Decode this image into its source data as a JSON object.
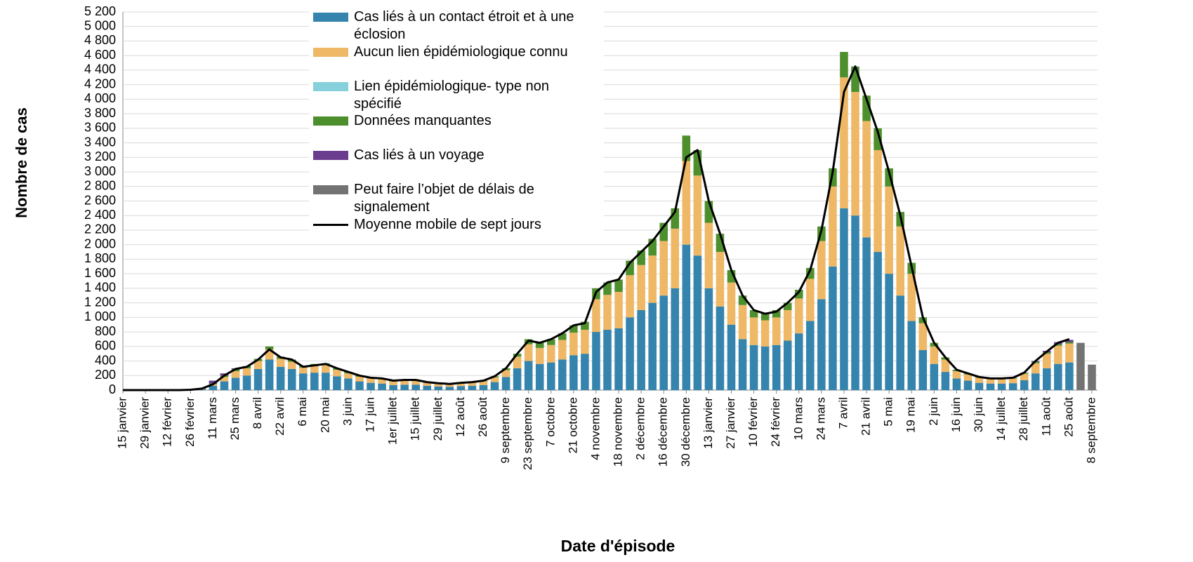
{
  "chart_data": {
    "type": "bar",
    "title_y": "Nombre de cas",
    "title_x": "Date d'épisode",
    "categories": [
      "15 janvier",
      null,
      "29 janvier",
      null,
      "12 février",
      null,
      "26 février",
      null,
      "11 mars",
      null,
      "25 mars",
      null,
      "8 avril",
      null,
      "22 avril",
      null,
      "6 mai",
      null,
      "20 mai",
      null,
      "3 juin",
      null,
      "17 juin",
      null,
      "1er juillet",
      null,
      "15 juillet",
      null,
      "29 juillet",
      null,
      "12 août",
      null,
      "26 août",
      null,
      "9 septembre",
      null,
      "23 septembre",
      null,
      "7 octobre",
      null,
      "21 octobre",
      null,
      "4 novembre",
      null,
      "18 novembre",
      null,
      "2 décembre",
      null,
      "16 décembre",
      null,
      "30 décembre",
      null,
      "13 janvier",
      null,
      "27 janvier",
      null,
      "10 février",
      null,
      "24 février",
      null,
      "10 mars",
      null,
      "24 mars",
      null,
      "7 avril",
      null,
      "21 avril",
      null,
      "5 mai",
      null,
      "19 mai",
      null,
      "2 juin",
      null,
      "16 juin",
      null,
      "30 juin",
      null,
      "14 juillet",
      null,
      "28 juillet",
      null,
      "11 août",
      null,
      "25 août",
      null,
      "8 septembre"
    ],
    "series": [
      {
        "name": "Cas liés à un contact étroit et à une éclosion",
        "color": "#3584ad",
        "values": [
          0,
          0,
          0,
          0,
          0,
          0,
          0,
          10,
          60,
          120,
          170,
          200,
          290,
          420,
          320,
          290,
          230,
          240,
          240,
          190,
          160,
          120,
          100,
          90,
          70,
          75,
          75,
          60,
          50,
          45,
          55,
          60,
          70,
          110,
          180,
          300,
          400,
          360,
          380,
          420,
          480,
          500,
          800,
          830,
          850,
          1000,
          1100,
          1200,
          1300,
          1400,
          2000,
          1850,
          1400,
          1150,
          900,
          700,
          620,
          600,
          620,
          680,
          780,
          950,
          1250,
          1700,
          2500,
          2400,
          2100,
          1900,
          1600,
          1300,
          950,
          550,
          360,
          250,
          160,
          130,
          100,
          90,
          90,
          95,
          135,
          230,
          300,
          360,
          380,
          0,
          0
        ]
      },
      {
        "name": "Aucun lien épidémiologique connu",
        "color": "#eeb866",
        "values": [
          0,
          0,
          0,
          0,
          0,
          0,
          0,
          5,
          20,
          60,
          90,
          100,
          110,
          140,
          110,
          100,
          80,
          90,
          100,
          90,
          70,
          65,
          60,
          60,
          50,
          55,
          55,
          40,
          38,
          33,
          38,
          42,
          50,
          65,
          95,
          160,
          230,
          220,
          240,
          270,
          310,
          330,
          450,
          480,
          500,
          580,
          620,
          650,
          750,
          820,
          1150,
          1100,
          900,
          750,
          580,
          470,
          380,
          360,
          380,
          420,
          480,
          580,
          800,
          1100,
          1800,
          1700,
          1600,
          1400,
          1200,
          950,
          650,
          370,
          240,
          170,
          100,
          85,
          70,
          60,
          60,
          65,
          90,
          140,
          200,
          250,
          260,
          0,
          0
        ]
      },
      {
        "name": "Lien épidémiologique- type non spécifié",
        "color": "#86d0dc",
        "values": [
          0,
          0,
          0,
          0,
          0,
          0,
          0,
          0,
          0,
          0,
          0,
          0,
          0,
          0,
          0,
          0,
          0,
          0,
          0,
          0,
          0,
          0,
          0,
          0,
          0,
          0,
          0,
          0,
          0,
          0,
          0,
          0,
          0,
          0,
          0,
          0,
          0,
          0,
          0,
          0,
          0,
          0,
          0,
          0,
          0,
          0,
          0,
          0,
          0,
          0,
          0,
          0,
          0,
          0,
          0,
          0,
          0,
          0,
          0,
          0,
          0,
          0,
          0,
          0,
          0,
          0,
          0,
          0,
          0,
          0,
          0,
          0,
          0,
          0,
          0,
          0,
          0,
          0,
          0,
          0,
          0,
          0,
          0,
          0,
          0,
          0,
          0
        ]
      },
      {
        "name": "Données manquantes",
        "color": "#4e8f2d",
        "values": [
          0,
          0,
          0,
          0,
          0,
          0,
          0,
          0,
          10,
          20,
          30,
          30,
          30,
          40,
          30,
          30,
          20,
          30,
          30,
          20,
          20,
          15,
          10,
          10,
          10,
          10,
          10,
          10,
          7,
          7,
          7,
          8,
          10,
          15,
          25,
          40,
          70,
          70,
          80,
          90,
          100,
          110,
          150,
          170,
          170,
          200,
          200,
          230,
          250,
          280,
          350,
          350,
          300,
          250,
          170,
          130,
          100,
          90,
          100,
          100,
          120,
          150,
          200,
          250,
          350,
          350,
          350,
          300,
          250,
          200,
          150,
          80,
          50,
          30,
          20,
          15,
          10,
          10,
          10,
          10,
          15,
          20,
          20,
          20,
          20,
          0,
          0
        ]
      },
      {
        "name": "Cas liés à un voyage",
        "color": "#6b3d8e",
        "values": [
          0,
          0,
          0,
          0,
          0,
          0,
          5,
          10,
          40,
          30,
          10,
          0,
          0,
          0,
          0,
          0,
          0,
          0,
          0,
          0,
          0,
          0,
          0,
          0,
          0,
          0,
          0,
          0,
          0,
          0,
          0,
          0,
          0,
          0,
          0,
          0,
          0,
          0,
          0,
          0,
          0,
          0,
          0,
          0,
          0,
          0,
          0,
          0,
          0,
          0,
          0,
          0,
          0,
          0,
          0,
          0,
          0,
          0,
          0,
          0,
          0,
          0,
          0,
          0,
          0,
          0,
          0,
          0,
          0,
          0,
          0,
          0,
          0,
          0,
          0,
          0,
          0,
          0,
          0,
          0,
          0,
          10,
          20,
          30,
          30,
          0,
          0
        ]
      },
      {
        "name": "Peut faire l’objet de délais de signalement",
        "color": "#737373",
        "values": [
          0,
          0,
          0,
          0,
          0,
          0,
          0,
          0,
          0,
          0,
          0,
          0,
          0,
          0,
          0,
          0,
          0,
          0,
          0,
          0,
          0,
          0,
          0,
          0,
          0,
          0,
          0,
          0,
          0,
          0,
          0,
          0,
          0,
          0,
          0,
          0,
          0,
          0,
          0,
          0,
          0,
          0,
          0,
          0,
          0,
          0,
          0,
          0,
          0,
          0,
          0,
          0,
          0,
          0,
          0,
          0,
          0,
          0,
          0,
          0,
          0,
          0,
          0,
          0,
          0,
          0,
          0,
          0,
          0,
          0,
          0,
          0,
          0,
          0,
          0,
          0,
          0,
          0,
          0,
          0,
          0,
          0,
          0,
          0,
          0,
          650,
          350
        ]
      },
      {
        "name": "Moyenne mobile de sept jours",
        "color": "#000000",
        "type": "line",
        "values": [
          0,
          0,
          0,
          0,
          0,
          0,
          5,
          20,
          80,
          200,
          290,
          320,
          420,
          560,
          450,
          420,
          320,
          340,
          360,
          300,
          250,
          200,
          170,
          160,
          130,
          140,
          140,
          110,
          95,
          85,
          100,
          110,
          130,
          190,
          300,
          500,
          680,
          650,
          700,
          780,
          890,
          920,
          1350,
          1480,
          1520,
          1750,
          1900,
          2050,
          2250,
          2450,
          3200,
          3300,
          2600,
          2150,
          1650,
          1300,
          1100,
          1050,
          1080,
          1200,
          1350,
          1650,
          2200,
          3000,
          4100,
          4450,
          4000,
          3550,
          3000,
          2400,
          1700,
          1000,
          650,
          450,
          280,
          230,
          180,
          160,
          160,
          170,
          240,
          400,
          530,
          650,
          700,
          null,
          null
        ]
      }
    ],
    "ylim": [
      0,
      5200
    ],
    "yticks": [
      0,
      200,
      400,
      600,
      800,
      {
        "value": 1000,
        "label": "1 000"
      },
      {
        "value": 1200,
        "label": "1 200"
      },
      {
        "value": 1400,
        "label": "1 400"
      },
      {
        "value": 1600,
        "label": "1 600"
      },
      {
        "value": 1800,
        "label": "1 800"
      },
      {
        "value": 2000,
        "label": "2 000"
      },
      {
        "value": 2200,
        "label": "2 200"
      },
      {
        "value": 2400,
        "label": "2 400"
      },
      {
        "value": 2600,
        "label": "2 600"
      },
      {
        "value": 2800,
        "label": "2 800"
      },
      {
        "value": 3000,
        "label": "3 000"
      },
      {
        "value": 3200,
        "label": "3 200"
      },
      {
        "value": 3400,
        "label": "3 400"
      },
      {
        "value": 3600,
        "label": "3 600"
      },
      {
        "value": 3800,
        "label": "3 800"
      },
      {
        "value": 4000,
        "label": "4 000"
      },
      {
        "value": 4200,
        "label": "4 200"
      },
      {
        "value": 4400,
        "label": "4 400"
      },
      {
        "value": 4600,
        "label": "4 600"
      },
      {
        "value": 4800,
        "label": "4 800"
      },
      {
        "value": 5000,
        "label": "5 000"
      },
      {
        "value": 5200,
        "label": "5 200"
      }
    ],
    "grid": true
  }
}
